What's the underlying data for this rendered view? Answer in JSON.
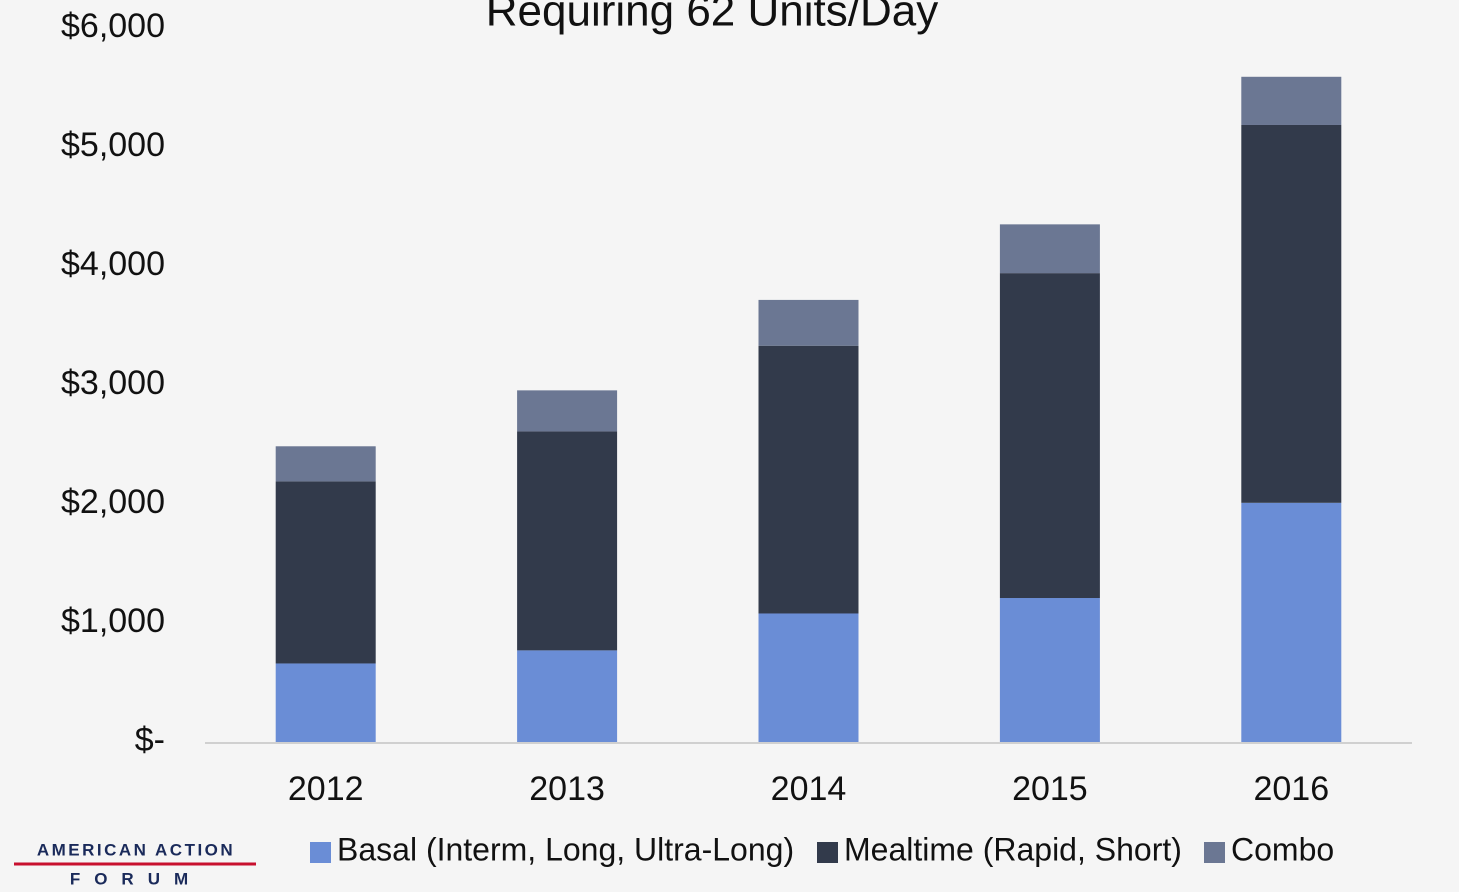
{
  "chart_data": {
    "type": "stacked_bar",
    "title": "Requiring 62 Units/Day",
    "categories": [
      "2012",
      "2013",
      "2014",
      "2015",
      "2016"
    ],
    "series": [
      {
        "name": "Basal (Interm, Long, Ultra-Long)",
        "color": "#6a8dd6",
        "values": [
          660,
          770,
          1080,
          1210,
          2010
        ]
      },
      {
        "name": "Mealtime (Rapid, Short)",
        "color": "#323a4b",
        "values": [
          1530,
          1840,
          2250,
          2730,
          3175
        ]
      },
      {
        "name": "Combo",
        "color": "#6b7793",
        "values": [
          295,
          345,
          385,
          410,
          405
        ]
      }
    ],
    "ylim": [
      0,
      6000
    ],
    "yticks": [
      {
        "value": 0,
        "label": "$-"
      },
      {
        "value": 1000,
        "label": "$1,000"
      },
      {
        "value": 2000,
        "label": "$2,000"
      },
      {
        "value": 3000,
        "label": "$3,000"
      },
      {
        "value": 4000,
        "label": "$4,000"
      },
      {
        "value": 5000,
        "label": "$5,000"
      },
      {
        "value": 6000,
        "label": "$6,000"
      }
    ],
    "grid": false,
    "legend": "bottom"
  },
  "logo": {
    "line1": "AMERICAN ACTION",
    "line2": "FORUM"
  }
}
